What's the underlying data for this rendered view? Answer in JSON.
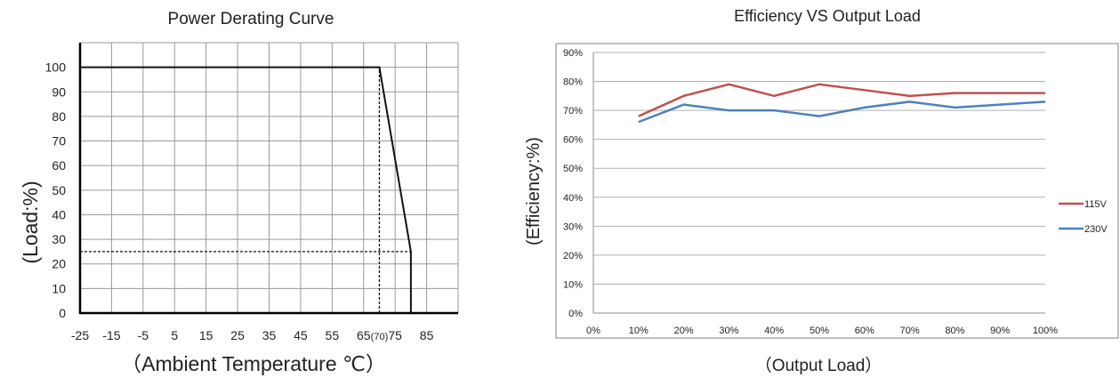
{
  "chart_data": [
    {
      "type": "line",
      "title": "Power Derating Curve",
      "xlabel": "（Ambient Temperature ℃）",
      "ylabel": "(Load:%)",
      "x_ticks": [
        "-25",
        "-15",
        "-5",
        "5",
        "15",
        "25",
        "35",
        "45",
        "55",
        "65",
        "(70)",
        "75",
        "85"
      ],
      "y_ticks": [
        "0",
        "10",
        "20",
        "30",
        "40",
        "50",
        "60",
        "70",
        "80",
        "90",
        "100"
      ],
      "xlim": [
        -25,
        95
      ],
      "ylim": [
        0,
        110
      ],
      "grid": true,
      "series": [
        {
          "x": [
            -25,
            70,
            80,
            80
          ],
          "y": [
            100,
            100,
            25,
            0
          ]
        }
      ],
      "reference_lines": [
        {
          "x": [
            70,
            70
          ],
          "y": [
            0,
            100
          ],
          "style": "dashed"
        },
        {
          "x": [
            -25,
            80
          ],
          "y": [
            25,
            25
          ],
          "style": "dashed"
        }
      ]
    },
    {
      "type": "line",
      "title": "Efficiency VS Output Load",
      "xlabel": "（Output Load）",
      "ylabel": "(Efficiency:%)",
      "x_ticks": [
        "0%",
        "10%",
        "20%",
        "30%",
        "40%",
        "50%",
        "60%",
        "70%",
        "80%",
        "90%",
        "100%"
      ],
      "y_ticks": [
        "0%",
        "10%",
        "20%",
        "30%",
        "40%",
        "50%",
        "60%",
        "70%",
        "80%",
        "90%"
      ],
      "xlim": [
        0,
        100
      ],
      "ylim": [
        0,
        90
      ],
      "grid": "horizontal",
      "legend": "right",
      "x": [
        10,
        20,
        30,
        40,
        50,
        60,
        70,
        80,
        90,
        100
      ],
      "series": [
        {
          "name": "115V",
          "color": "#c0504d",
          "values": [
            68,
            75,
            79,
            75,
            79,
            77,
            75,
            76,
            76,
            76
          ]
        },
        {
          "name": "230V",
          "color": "#4f81bd",
          "values": [
            66,
            72,
            70,
            70,
            68,
            71,
            73,
            71,
            72,
            73
          ]
        }
      ]
    }
  ]
}
